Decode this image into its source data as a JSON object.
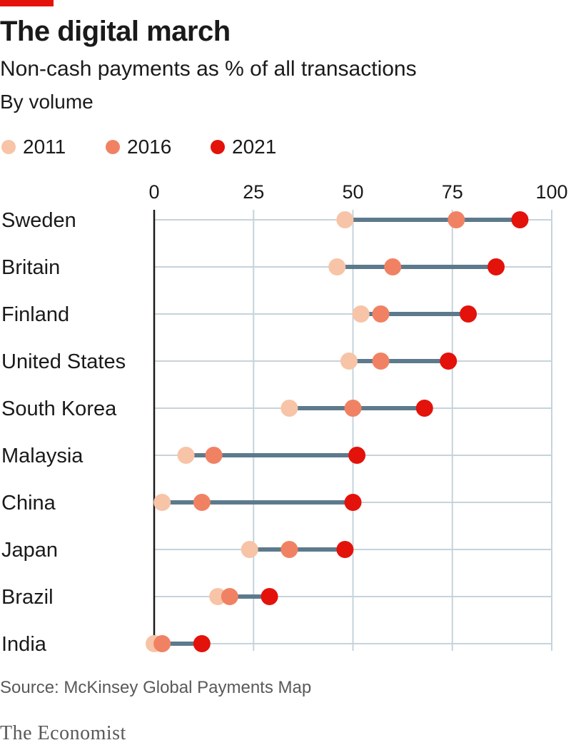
{
  "header": {
    "title": "The digital march",
    "subtitle": "Non-cash payments as % of all transactions",
    "subsubtitle": "By volume"
  },
  "colors": {
    "c2011": "#f7c4a7",
    "c2016": "#f08263",
    "c2021": "#e3120b",
    "connector": "#5d7a8c",
    "grid": "#c6d3dc",
    "axis": "#1a1a1a",
    "accent": "#e3120b"
  },
  "chart_data": {
    "type": "dot-plot",
    "title": "The digital march",
    "subtitle": "Non-cash payments as % of all transactions",
    "xlim": [
      0,
      100
    ],
    "x_ticks": [
      "0",
      "25",
      "50",
      "75",
      "100"
    ],
    "categories": [
      "Sweden",
      "Britain",
      "Finland",
      "United States",
      "South Korea",
      "Malaysia",
      "China",
      "Japan",
      "Brazil",
      "India"
    ],
    "series": [
      {
        "name": "2011",
        "values": [
          48,
          46,
          52,
          49,
          34,
          8,
          2,
          24,
          16,
          0
        ]
      },
      {
        "name": "2016",
        "values": [
          76,
          60,
          57,
          57,
          50,
          15,
          12,
          34,
          19,
          2
        ]
      },
      {
        "name": "2021",
        "values": [
          92,
          86,
          79,
          74,
          68,
          51,
          50,
          48,
          29,
          12
        ]
      }
    ],
    "legend": "top-left"
  },
  "footer": {
    "source": "Source: McKinsey Global Payments Map",
    "brand": "The Economist"
  }
}
